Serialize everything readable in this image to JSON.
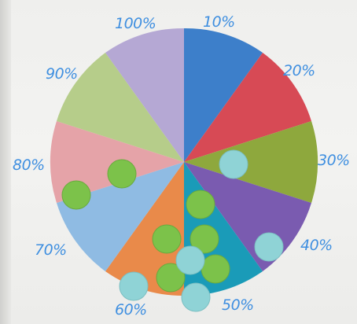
{
  "scene": {
    "description_labels": [
      "10%",
      "20%",
      "30%",
      "40%",
      "50%",
      "60%",
      "70%",
      "80%",
      "90%",
      "100%"
    ],
    "sector_colors": [
      "#3d7fca",
      "#d74a55",
      "#8ea83d",
      "#7a5bb0",
      "#1a9bb8",
      "#e98a4a",
      "#8fbbe3",
      "#e5a3a8",
      "#b6cd8a",
      "#b5a8d4"
    ],
    "label_color": "#3f8fe0",
    "green_token_color": "#7cc24a",
    "teal_token_color": "#8fd3d6"
  }
}
